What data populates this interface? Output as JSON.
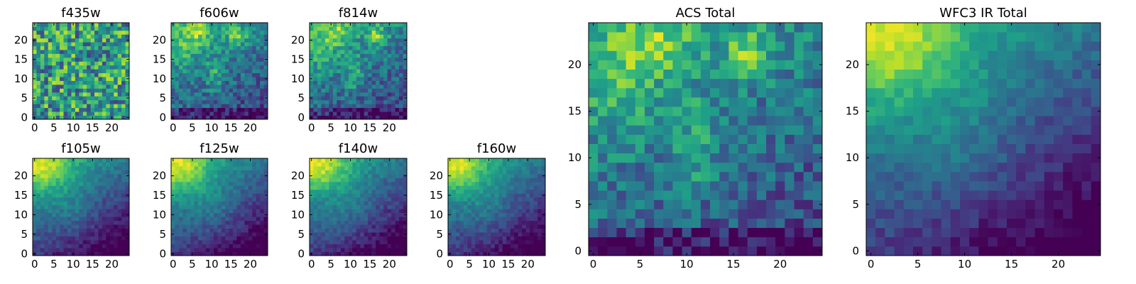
{
  "chart_data": [
    {
      "type": "heatmap",
      "title": "f435w",
      "size": 25,
      "colormap": "viridis",
      "xticks": [
        0,
        5,
        10,
        15,
        20
      ],
      "yticks": [
        0,
        5,
        10,
        15,
        20
      ],
      "xlim": [
        -0.5,
        24.5
      ],
      "ylim": [
        -0.5,
        24.5
      ],
      "pattern": "noise",
      "seed": 11,
      "base": 0.55
    },
    {
      "type": "heatmap",
      "title": "f606w",
      "size": 25,
      "colormap": "viridis",
      "xticks": [
        0,
        5,
        10,
        15,
        20
      ],
      "yticks": [
        0,
        5,
        10,
        15,
        20
      ],
      "xlim": [
        -0.5,
        24.5
      ],
      "ylim": [
        -0.5,
        24.5
      ],
      "pattern": "acs",
      "seed": 23
    },
    {
      "type": "heatmap",
      "title": "f814w",
      "size": 25,
      "colormap": "viridis",
      "xticks": [
        0,
        5,
        10,
        15,
        20
      ],
      "yticks": [
        0,
        5,
        10,
        15,
        20
      ],
      "xlim": [
        -0.5,
        24.5
      ],
      "ylim": [
        -0.5,
        24.5
      ],
      "pattern": "acs",
      "seed": 37
    },
    {
      "type": "heatmap",
      "title": "f105w",
      "size": 25,
      "colormap": "viridis",
      "xticks": [
        0,
        5,
        10,
        15,
        20
      ],
      "yticks": [
        0,
        5,
        10,
        15,
        20
      ],
      "xlim": [
        -0.5,
        24.5
      ],
      "ylim": [
        -0.5,
        24.5
      ],
      "pattern": "ir",
      "seed": 41
    },
    {
      "type": "heatmap",
      "title": "f125w",
      "size": 25,
      "colormap": "viridis",
      "xticks": [
        0,
        5,
        10,
        15,
        20
      ],
      "yticks": [
        0,
        5,
        10,
        15,
        20
      ],
      "xlim": [
        -0.5,
        24.5
      ],
      "ylim": [
        -0.5,
        24.5
      ],
      "pattern": "ir",
      "seed": 53
    },
    {
      "type": "heatmap",
      "title": "f140w",
      "size": 25,
      "colormap": "viridis",
      "xticks": [
        0,
        5,
        10,
        15,
        20
      ],
      "yticks": [
        0,
        5,
        10,
        15,
        20
      ],
      "xlim": [
        -0.5,
        24.5
      ],
      "ylim": [
        -0.5,
        24.5
      ],
      "pattern": "ir",
      "seed": 67
    },
    {
      "type": "heatmap",
      "title": "f160w",
      "size": 25,
      "colormap": "viridis",
      "xticks": [
        0,
        5,
        10,
        15,
        20
      ],
      "yticks": [
        0,
        5,
        10,
        15,
        20
      ],
      "xlim": [
        -0.5,
        24.5
      ],
      "ylim": [
        -0.5,
        24.5
      ],
      "pattern": "ir",
      "seed": 79
    },
    {
      "type": "heatmap",
      "title": "ACS Total",
      "size": 25,
      "colormap": "viridis",
      "xticks": [
        0,
        5,
        10,
        15,
        20
      ],
      "yticks": [
        0,
        5,
        10,
        15,
        20
      ],
      "xlim": [
        -0.5,
        24.5
      ],
      "ylim": [
        -0.5,
        24.5
      ],
      "pattern": "acs",
      "seed": 97
    },
    {
      "type": "heatmap",
      "title": "WFC3 IR Total",
      "size": 25,
      "colormap": "viridis",
      "xticks": [
        0,
        5,
        10,
        15,
        20
      ],
      "yticks": [
        0,
        5,
        10,
        15,
        20
      ],
      "xlim": [
        -0.5,
        24.5
      ],
      "ylim": [
        -0.5,
        24.5
      ],
      "pattern": "ir",
      "seed": 101
    }
  ]
}
